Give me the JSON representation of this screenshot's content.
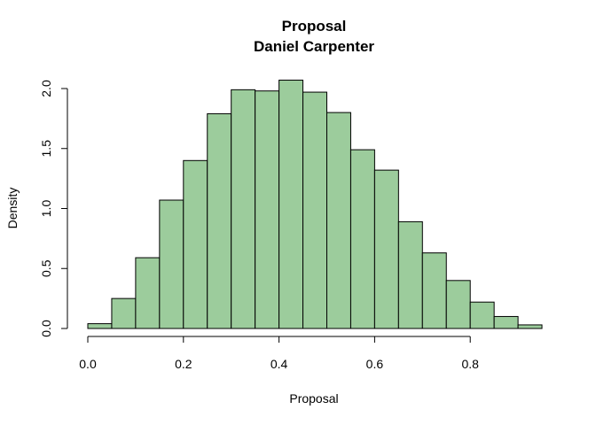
{
  "chart_data": {
    "type": "bar",
    "title": "Proposal",
    "subtitle": "Daniel Carpenter",
    "xlabel": "Proposal",
    "ylabel": "Density",
    "bin_width": 0.05,
    "bin_starts": [
      0.0,
      0.05,
      0.1,
      0.15,
      0.2,
      0.25,
      0.3,
      0.35,
      0.4,
      0.45,
      0.5,
      0.55,
      0.6,
      0.65,
      0.7,
      0.75,
      0.8,
      0.85,
      0.9
    ],
    "values": [
      0.04,
      0.25,
      0.59,
      1.07,
      1.4,
      1.79,
      1.99,
      1.98,
      2.07,
      1.97,
      1.8,
      1.49,
      1.32,
      0.89,
      0.63,
      0.4,
      0.22,
      0.1,
      0.03
    ],
    "xlim": [
      0.0,
      0.95
    ],
    "ylim": [
      0.0,
      2.0
    ],
    "x_ticks": [
      "0.0",
      "0.2",
      "0.4",
      "0.6",
      "0.8"
    ],
    "y_ticks": [
      "0.0",
      "0.5",
      "1.0",
      "1.5",
      "2.0"
    ],
    "bar_color": "#9ccc9c",
    "grid": false,
    "legend": "none"
  }
}
